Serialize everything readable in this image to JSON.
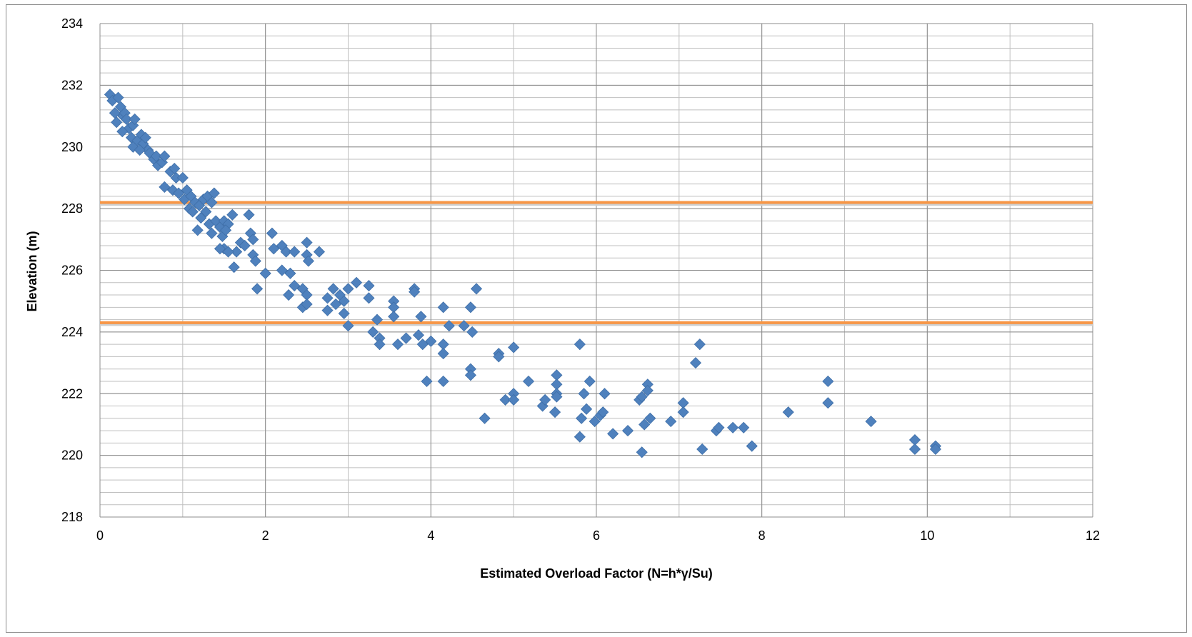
{
  "chart_data": {
    "type": "scatter",
    "title": "",
    "xlabel": "Estimated Overload Factor (N=h*γ/Su)",
    "ylabel": "Elevation (m)",
    "xlim": [
      0,
      12
    ],
    "ylim": [
      218,
      234
    ],
    "x_major_ticks": [
      0,
      2,
      4,
      6,
      8,
      10,
      12
    ],
    "y_major_ticks": [
      218,
      220,
      222,
      224,
      226,
      228,
      230,
      232,
      234
    ],
    "x_minor_step": 1,
    "y_minor_step": 0.4,
    "grid": "on",
    "legend": "none",
    "marker_color": "#4f81bd",
    "gridline_color": "#bfbfbf",
    "reference_lines": [
      {
        "y": 228.2,
        "color": "#f79646"
      },
      {
        "y": 224.3,
        "color": "#f79646"
      }
    ],
    "series": [
      {
        "marker": "diamond",
        "points": [
          [
            0.12,
            231.7
          ],
          [
            0.15,
            231.5
          ],
          [
            0.22,
            231.6
          ],
          [
            0.18,
            231.1
          ],
          [
            0.25,
            231.3
          ],
          [
            0.28,
            231.0
          ],
          [
            0.3,
            231.1
          ],
          [
            0.2,
            230.8
          ],
          [
            0.32,
            230.9
          ],
          [
            0.35,
            230.6
          ],
          [
            0.27,
            230.5
          ],
          [
            0.4,
            230.7
          ],
          [
            0.42,
            230.9
          ],
          [
            0.38,
            230.3
          ],
          [
            0.45,
            230.2
          ],
          [
            0.5,
            230.4
          ],
          [
            0.52,
            230.1
          ],
          [
            0.4,
            230.0
          ],
          [
            0.55,
            230.3
          ],
          [
            0.58,
            229.9
          ],
          [
            0.6,
            229.8
          ],
          [
            0.48,
            229.9
          ],
          [
            0.65,
            229.6
          ],
          [
            0.68,
            229.7
          ],
          [
            0.7,
            229.4
          ],
          [
            0.75,
            229.5
          ],
          [
            0.78,
            229.7
          ],
          [
            0.85,
            229.2
          ],
          [
            0.9,
            229.3
          ],
          [
            0.92,
            229.0
          ],
          [
            0.78,
            228.7
          ],
          [
            0.88,
            228.6
          ],
          [
            1.0,
            229.0
          ],
          [
            0.95,
            228.5
          ],
          [
            1.02,
            228.3
          ],
          [
            1.05,
            228.6
          ],
          [
            1.1,
            228.4
          ],
          [
            1.15,
            228.2
          ],
          [
            1.08,
            228.0
          ],
          [
            1.2,
            228.1
          ],
          [
            1.25,
            228.3
          ],
          [
            1.3,
            228.4
          ],
          [
            1.35,
            228.2
          ],
          [
            1.38,
            228.5
          ],
          [
            1.12,
            227.9
          ],
          [
            1.22,
            227.7
          ],
          [
            1.28,
            227.9
          ],
          [
            1.32,
            227.5
          ],
          [
            1.4,
            227.6
          ],
          [
            1.45,
            227.4
          ],
          [
            1.5,
            227.6
          ],
          [
            1.55,
            227.5
          ],
          [
            1.6,
            227.8
          ],
          [
            1.18,
            227.3
          ],
          [
            1.35,
            227.2
          ],
          [
            1.48,
            227.1
          ],
          [
            1.52,
            227.3
          ],
          [
            1.8,
            227.8
          ],
          [
            1.82,
            227.2
          ],
          [
            1.85,
            227.0
          ],
          [
            1.7,
            226.9
          ],
          [
            1.75,
            226.8
          ],
          [
            1.65,
            226.6
          ],
          [
            1.5,
            226.7
          ],
          [
            1.55,
            226.6
          ],
          [
            1.45,
            226.7
          ],
          [
            1.62,
            226.1
          ],
          [
            1.85,
            226.5
          ],
          [
            1.88,
            226.3
          ],
          [
            2.08,
            227.2
          ],
          [
            2.2,
            226.8
          ],
          [
            2.25,
            226.6
          ],
          [
            2.1,
            226.7
          ],
          [
            2.35,
            226.6
          ],
          [
            2.5,
            226.5
          ],
          [
            2.52,
            226.3
          ],
          [
            2.5,
            226.9
          ],
          [
            2.65,
            226.6
          ],
          [
            2.0,
            225.9
          ],
          [
            1.9,
            225.4
          ],
          [
            2.2,
            226.0
          ],
          [
            2.3,
            225.9
          ],
          [
            2.35,
            225.5
          ],
          [
            2.28,
            225.2
          ],
          [
            2.45,
            225.4
          ],
          [
            2.5,
            225.2
          ],
          [
            2.45,
            224.8
          ],
          [
            2.5,
            224.9
          ],
          [
            2.75,
            225.1
          ],
          [
            2.82,
            225.4
          ],
          [
            2.9,
            225.2
          ],
          [
            2.95,
            225.0
          ],
          [
            2.75,
            224.7
          ],
          [
            2.85,
            224.9
          ],
          [
            2.95,
            224.6
          ],
          [
            3.0,
            225.4
          ],
          [
            3.1,
            225.6
          ],
          [
            3.25,
            225.5
          ],
          [
            3.25,
            225.1
          ],
          [
            3.35,
            224.4
          ],
          [
            3.0,
            224.2
          ],
          [
            3.3,
            224.0
          ],
          [
            3.38,
            223.8
          ],
          [
            3.38,
            223.6
          ],
          [
            3.55,
            225.0
          ],
          [
            3.55,
            224.8
          ],
          [
            3.55,
            224.5
          ],
          [
            3.6,
            223.6
          ],
          [
            3.7,
            223.8
          ],
          [
            3.8,
            225.4
          ],
          [
            3.8,
            225.3
          ],
          [
            3.85,
            223.9
          ],
          [
            3.88,
            224.5
          ],
          [
            3.9,
            223.6
          ],
          [
            3.95,
            222.4
          ],
          [
            4.0,
            223.7
          ],
          [
            4.15,
            224.8
          ],
          [
            4.15,
            223.6
          ],
          [
            4.15,
            223.3
          ],
          [
            4.15,
            222.4
          ],
          [
            4.22,
            224.2
          ],
          [
            4.4,
            224.2
          ],
          [
            4.48,
            224.8
          ],
          [
            4.5,
            224.0
          ],
          [
            4.48,
            222.8
          ],
          [
            4.48,
            222.6
          ],
          [
            4.55,
            225.4
          ],
          [
            4.65,
            221.2
          ],
          [
            4.82,
            223.3
          ],
          [
            4.82,
            223.2
          ],
          [
            4.9,
            221.8
          ],
          [
            5.0,
            223.5
          ],
          [
            5.0,
            222.0
          ],
          [
            5.0,
            221.8
          ],
          [
            5.18,
            222.4
          ],
          [
            5.35,
            221.6
          ],
          [
            5.38,
            221.8
          ],
          [
            5.5,
            221.4
          ],
          [
            5.52,
            222.6
          ],
          [
            5.52,
            222.3
          ],
          [
            5.52,
            222.0
          ],
          [
            5.52,
            221.9
          ],
          [
            5.8,
            223.6
          ],
          [
            5.8,
            220.6
          ],
          [
            5.82,
            221.2
          ],
          [
            5.85,
            222.0
          ],
          [
            5.88,
            221.5
          ],
          [
            5.92,
            222.4
          ],
          [
            5.98,
            221.1
          ],
          [
            6.05,
            221.3
          ],
          [
            6.08,
            221.4
          ],
          [
            6.1,
            222.0
          ],
          [
            6.2,
            220.7
          ],
          [
            6.38,
            220.8
          ],
          [
            6.52,
            221.8
          ],
          [
            6.55,
            221.9
          ],
          [
            6.55,
            220.1
          ],
          [
            6.58,
            221.0
          ],
          [
            6.62,
            222.3
          ],
          [
            6.62,
            222.1
          ],
          [
            6.65,
            221.2
          ],
          [
            6.9,
            221.1
          ],
          [
            7.05,
            221.7
          ],
          [
            7.05,
            221.4
          ],
          [
            7.2,
            223.0
          ],
          [
            7.25,
            223.6
          ],
          [
            7.28,
            220.2
          ],
          [
            7.45,
            220.8
          ],
          [
            7.48,
            220.9
          ],
          [
            7.65,
            220.9
          ],
          [
            7.78,
            220.9
          ],
          [
            7.88,
            220.3
          ],
          [
            8.32,
            221.4
          ],
          [
            8.8,
            222.4
          ],
          [
            8.8,
            221.7
          ],
          [
            9.32,
            221.1
          ],
          [
            9.85,
            220.5
          ],
          [
            9.85,
            220.2
          ],
          [
            10.1,
            220.3
          ],
          [
            10.1,
            220.2
          ]
        ]
      }
    ]
  }
}
